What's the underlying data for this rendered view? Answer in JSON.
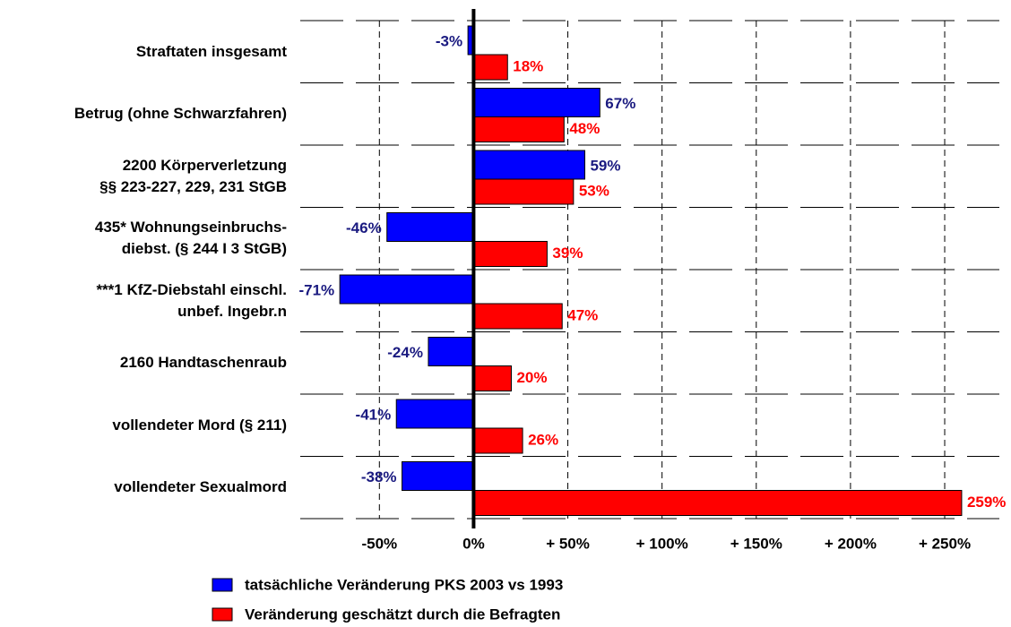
{
  "chart_data": {
    "type": "bar",
    "orientation": "horizontal",
    "categories": [
      "Straftaten insgesamt",
      "Betrug (ohne Schwarzfahren)",
      "2200 Körperverletzung\n§§ 223-227, 229, 231 StGB",
      "435* Wohnungseinbruchs-\ndiebst. (§ 244 I 3 StGB)",
      "***1 KfZ-Diebstahl  einschl.\nunbef. Ingebr.n",
      "2160 Handtaschenraub",
      "vollendeter Mord (§ 211)",
      "vollendeter Sexualmord"
    ],
    "series": [
      {
        "name": "tatsächliche Veränderung PKS 2003 vs 1993",
        "color": "#0000ff",
        "label_color": "#1a1a80",
        "values": [
          -3,
          67,
          59,
          -46,
          -71,
          -24,
          -41,
          -38
        ],
        "value_labels": [
          "-3%",
          "67%",
          "59%",
          "-46%",
          "-71%",
          "-24%",
          "-41%",
          "-38%"
        ]
      },
      {
        "name": "Veränderung geschätzt durch die Befragten",
        "color": "#ff0000",
        "label_color": "#ff0000",
        "values": [
          18,
          48,
          53,
          39,
          47,
          20,
          26,
          259
        ],
        "value_labels": [
          "18%",
          "48%",
          "53%",
          "39%",
          "47%",
          "20%",
          "26%",
          "259%"
        ]
      }
    ],
    "xlim": [
      -92,
      279
    ],
    "xticks": [
      {
        "value": -50,
        "label": "-50%"
      },
      {
        "value": 0,
        "label": "0%"
      },
      {
        "value": 50,
        "label": "+ 50%"
      },
      {
        "value": 100,
        "label": "+ 100%"
      },
      {
        "value": 150,
        "label": "+ 150%"
      },
      {
        "value": 200,
        "label": "+ 200%"
      },
      {
        "value": 250,
        "label": "+ 250%"
      }
    ],
    "grid": true
  }
}
